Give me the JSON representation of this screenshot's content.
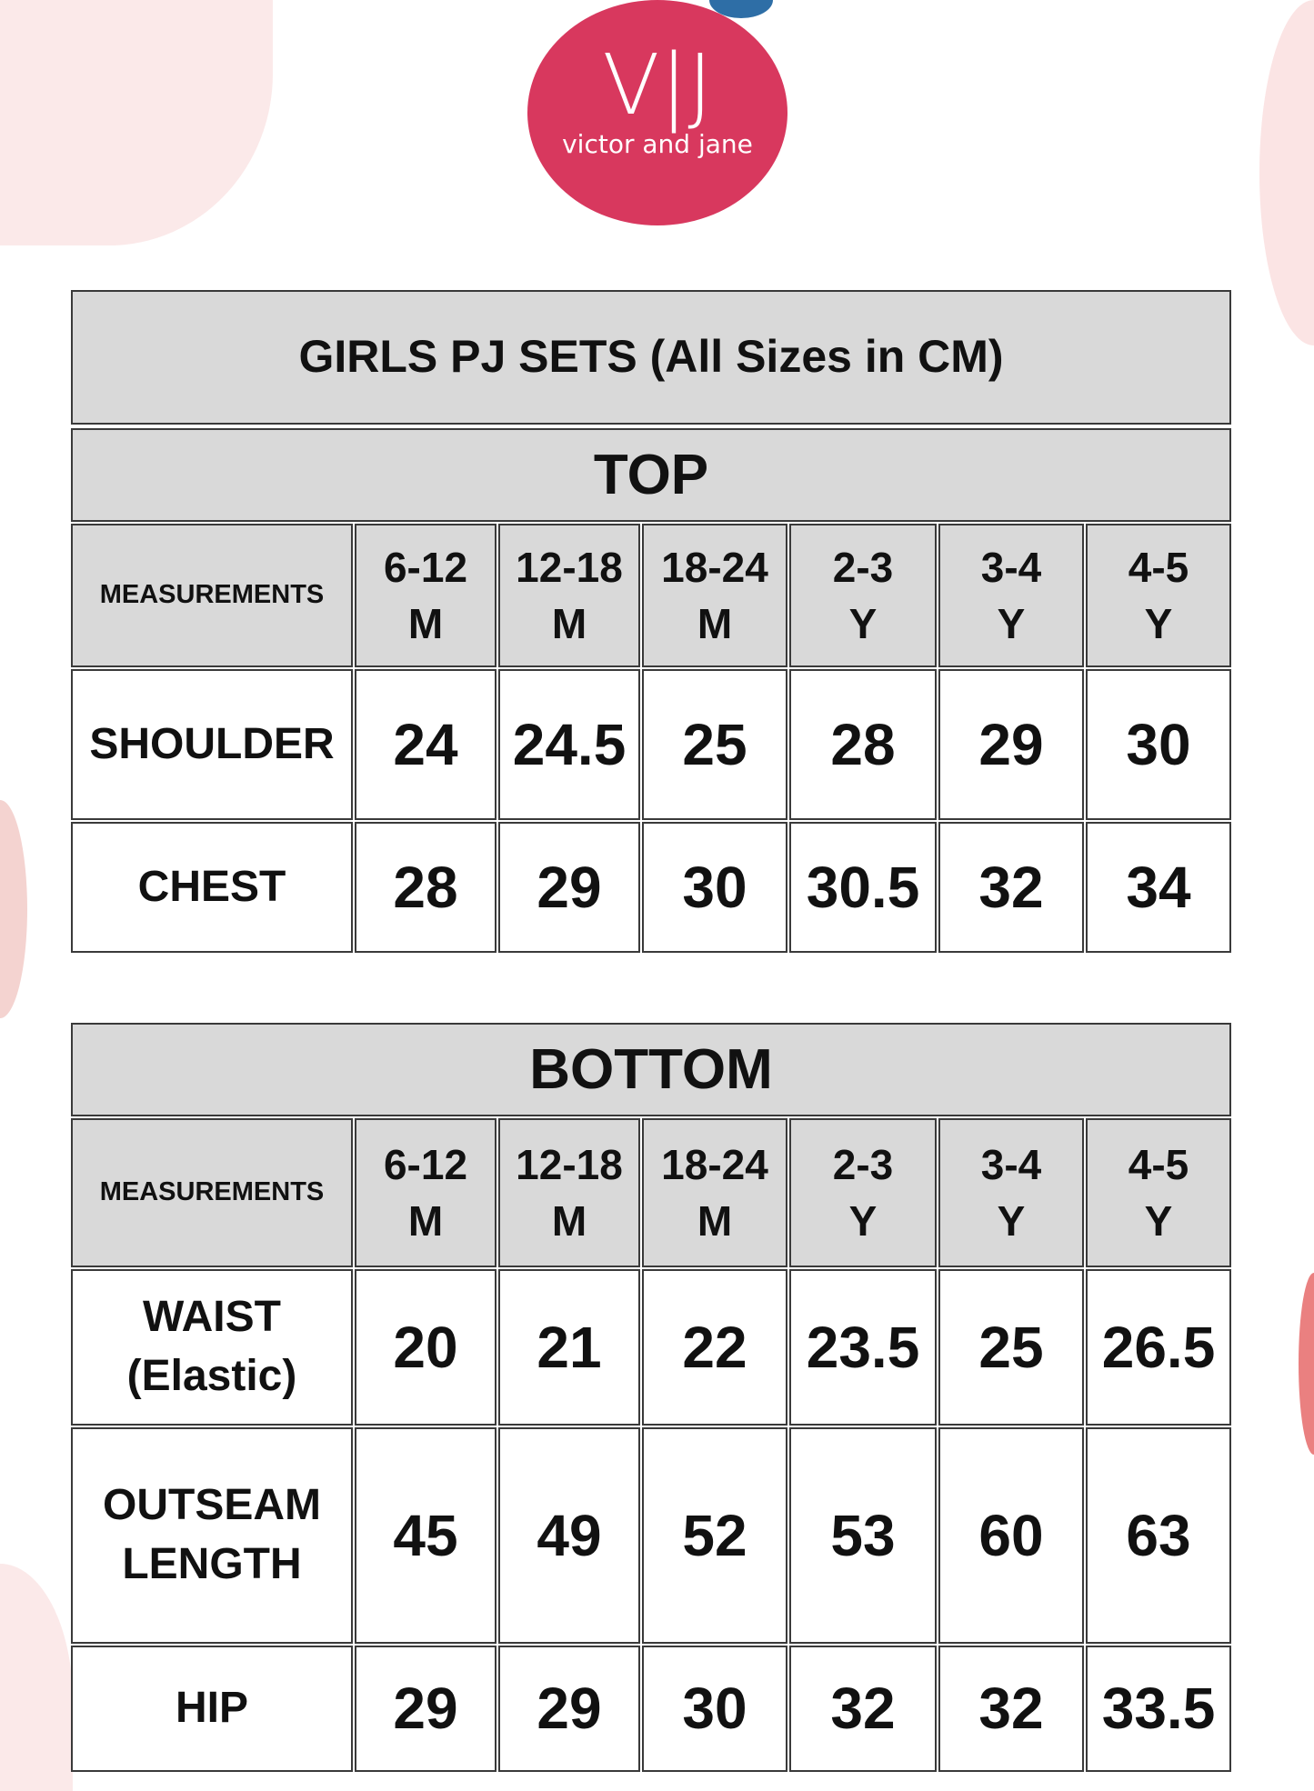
{
  "brand": {
    "logo_text": "V|J",
    "tagline": "victor and jane",
    "primary_color": "#d8385e",
    "accent_color": "#2e6ea6"
  },
  "title": "GIRLS PJ SETS (All Sizes in CM)",
  "sizes": [
    "6-12\nM",
    "12-18\nM",
    "18-24\nM",
    "2-3\nY",
    "3-4\nY",
    "4-5\nY"
  ],
  "measurements_label": "MEASUREMENTS",
  "top": {
    "heading": "TOP",
    "rows": [
      {
        "label": "SHOULDER",
        "values": [
          "24",
          "24.5",
          "25",
          "28",
          "29",
          "30"
        ]
      },
      {
        "label": "CHEST",
        "values": [
          "28",
          "29",
          "30",
          "30.5",
          "32",
          "34"
        ]
      }
    ]
  },
  "bottom": {
    "heading": "BOTTOM",
    "rows": [
      {
        "label": "WAIST\n(Elastic)",
        "values": [
          "20",
          "21",
          "22",
          "23.5",
          "25",
          "26.5"
        ]
      },
      {
        "label": "OUTSEAM\nLENGTH",
        "values": [
          "45",
          "49",
          "52",
          "53",
          "60",
          "63"
        ]
      },
      {
        "label": "HIP",
        "values": [
          "29",
          "29",
          "30",
          "32",
          "32",
          "33.5"
        ]
      }
    ]
  }
}
